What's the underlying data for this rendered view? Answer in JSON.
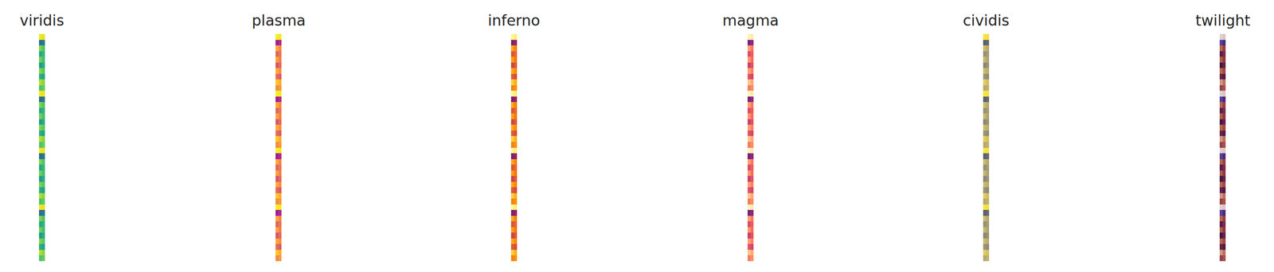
{
  "chart_data": [
    {
      "type": "heatmap",
      "title": "viridis",
      "zlim": [
        0,
        1
      ],
      "tick_labels": false,
      "cells": [
        [
          0.98,
          0.96
        ],
        [
          0.35,
          0.4
        ],
        [
          0.8,
          0.72
        ],
        [
          0.6,
          0.66
        ],
        [
          0.78,
          0.7
        ],
        [
          0.55,
          0.62
        ],
        [
          0.8,
          0.74
        ],
        [
          0.62,
          0.58
        ],
        [
          0.88,
          0.82
        ],
        [
          0.72,
          0.76
        ],
        [
          0.98,
          0.96
        ],
        [
          0.35,
          0.4
        ],
        [
          0.8,
          0.72
        ],
        [
          0.6,
          0.66
        ],
        [
          0.78,
          0.7
        ],
        [
          0.55,
          0.62
        ],
        [
          0.8,
          0.74
        ],
        [
          0.62,
          0.58
        ],
        [
          0.88,
          0.82
        ],
        [
          0.72,
          0.76
        ],
        [
          0.98,
          0.96
        ],
        [
          0.35,
          0.4
        ],
        [
          0.8,
          0.72
        ],
        [
          0.6,
          0.66
        ],
        [
          0.78,
          0.7
        ],
        [
          0.55,
          0.62
        ],
        [
          0.8,
          0.74
        ],
        [
          0.62,
          0.58
        ],
        [
          0.88,
          0.82
        ],
        [
          0.72,
          0.76
        ],
        [
          0.98,
          0.96
        ],
        [
          0.35,
          0.4
        ],
        [
          0.8,
          0.72
        ],
        [
          0.6,
          0.66
        ],
        [
          0.78,
          0.7
        ],
        [
          0.55,
          0.62
        ],
        [
          0.8,
          0.74
        ],
        [
          0.62,
          0.58
        ],
        [
          0.88,
          0.82
        ],
        [
          0.72,
          0.76
        ]
      ]
    },
    {
      "type": "heatmap",
      "title": "plasma",
      "zlim": [
        0,
        1
      ],
      "tick_labels": false,
      "cells": [
        [
          0.98,
          0.96
        ],
        [
          0.35,
          0.4
        ],
        [
          0.8,
          0.72
        ],
        [
          0.6,
          0.66
        ],
        [
          0.78,
          0.7
        ],
        [
          0.55,
          0.62
        ],
        [
          0.8,
          0.74
        ],
        [
          0.62,
          0.58
        ],
        [
          0.88,
          0.82
        ],
        [
          0.72,
          0.76
        ],
        [
          0.98,
          0.96
        ],
        [
          0.35,
          0.4
        ],
        [
          0.8,
          0.72
        ],
        [
          0.6,
          0.66
        ],
        [
          0.78,
          0.7
        ],
        [
          0.55,
          0.62
        ],
        [
          0.8,
          0.74
        ],
        [
          0.62,
          0.58
        ],
        [
          0.88,
          0.82
        ],
        [
          0.72,
          0.76
        ],
        [
          0.98,
          0.96
        ],
        [
          0.35,
          0.4
        ],
        [
          0.8,
          0.72
        ],
        [
          0.6,
          0.66
        ],
        [
          0.78,
          0.7
        ],
        [
          0.55,
          0.62
        ],
        [
          0.8,
          0.74
        ],
        [
          0.62,
          0.58
        ],
        [
          0.88,
          0.82
        ],
        [
          0.72,
          0.76
        ],
        [
          0.98,
          0.96
        ],
        [
          0.35,
          0.4
        ],
        [
          0.8,
          0.72
        ],
        [
          0.6,
          0.66
        ],
        [
          0.78,
          0.7
        ],
        [
          0.55,
          0.62
        ],
        [
          0.8,
          0.74
        ],
        [
          0.62,
          0.58
        ],
        [
          0.88,
          0.82
        ],
        [
          0.72,
          0.76
        ]
      ]
    },
    {
      "type": "heatmap",
      "title": "inferno",
      "zlim": [
        0,
        1
      ],
      "tick_labels": false,
      "cells": [
        [
          0.98,
          0.96
        ],
        [
          0.35,
          0.4
        ],
        [
          0.8,
          0.72
        ],
        [
          0.6,
          0.66
        ],
        [
          0.78,
          0.7
        ],
        [
          0.55,
          0.62
        ],
        [
          0.8,
          0.74
        ],
        [
          0.62,
          0.58
        ],
        [
          0.88,
          0.82
        ],
        [
          0.72,
          0.76
        ],
        [
          0.98,
          0.96
        ],
        [
          0.35,
          0.4
        ],
        [
          0.8,
          0.72
        ],
        [
          0.6,
          0.66
        ],
        [
          0.78,
          0.7
        ],
        [
          0.55,
          0.62
        ],
        [
          0.8,
          0.74
        ],
        [
          0.62,
          0.58
        ],
        [
          0.88,
          0.82
        ],
        [
          0.72,
          0.76
        ],
        [
          0.98,
          0.96
        ],
        [
          0.35,
          0.4
        ],
        [
          0.8,
          0.72
        ],
        [
          0.6,
          0.66
        ],
        [
          0.78,
          0.7
        ],
        [
          0.55,
          0.62
        ],
        [
          0.8,
          0.74
        ],
        [
          0.62,
          0.58
        ],
        [
          0.88,
          0.82
        ],
        [
          0.72,
          0.76
        ],
        [
          0.98,
          0.96
        ],
        [
          0.35,
          0.4
        ],
        [
          0.8,
          0.72
        ],
        [
          0.6,
          0.66
        ],
        [
          0.78,
          0.7
        ],
        [
          0.55,
          0.62
        ],
        [
          0.8,
          0.74
        ],
        [
          0.62,
          0.58
        ],
        [
          0.88,
          0.82
        ],
        [
          0.72,
          0.76
        ]
      ]
    },
    {
      "type": "heatmap",
      "title": "magma",
      "zlim": [
        0,
        1
      ],
      "tick_labels": false,
      "cells": [
        [
          0.98,
          0.96
        ],
        [
          0.35,
          0.4
        ],
        [
          0.8,
          0.72
        ],
        [
          0.6,
          0.66
        ],
        [
          0.78,
          0.7
        ],
        [
          0.55,
          0.62
        ],
        [
          0.8,
          0.74
        ],
        [
          0.62,
          0.58
        ],
        [
          0.88,
          0.82
        ],
        [
          0.72,
          0.76
        ],
        [
          0.98,
          0.96
        ],
        [
          0.35,
          0.4
        ],
        [
          0.8,
          0.72
        ],
        [
          0.6,
          0.66
        ],
        [
          0.78,
          0.7
        ],
        [
          0.55,
          0.62
        ],
        [
          0.8,
          0.74
        ],
        [
          0.62,
          0.58
        ],
        [
          0.88,
          0.82
        ],
        [
          0.72,
          0.76
        ],
        [
          0.98,
          0.96
        ],
        [
          0.35,
          0.4
        ],
        [
          0.8,
          0.72
        ],
        [
          0.6,
          0.66
        ],
        [
          0.78,
          0.7
        ],
        [
          0.55,
          0.62
        ],
        [
          0.8,
          0.74
        ],
        [
          0.62,
          0.58
        ],
        [
          0.88,
          0.82
        ],
        [
          0.72,
          0.76
        ],
        [
          0.98,
          0.96
        ],
        [
          0.35,
          0.4
        ],
        [
          0.8,
          0.72
        ],
        [
          0.6,
          0.66
        ],
        [
          0.78,
          0.7
        ],
        [
          0.55,
          0.62
        ],
        [
          0.8,
          0.74
        ],
        [
          0.62,
          0.58
        ],
        [
          0.88,
          0.82
        ],
        [
          0.72,
          0.76
        ]
      ]
    },
    {
      "type": "heatmap",
      "title": "cividis",
      "zlim": [
        0,
        1
      ],
      "tick_labels": false,
      "cells": [
        [
          0.98,
          0.96
        ],
        [
          0.35,
          0.4
        ],
        [
          0.8,
          0.72
        ],
        [
          0.6,
          0.66
        ],
        [
          0.78,
          0.7
        ],
        [
          0.55,
          0.62
        ],
        [
          0.8,
          0.74
        ],
        [
          0.62,
          0.58
        ],
        [
          0.88,
          0.82
        ],
        [
          0.72,
          0.76
        ],
        [
          0.98,
          0.96
        ],
        [
          0.35,
          0.4
        ],
        [
          0.8,
          0.72
        ],
        [
          0.6,
          0.66
        ],
        [
          0.78,
          0.7
        ],
        [
          0.55,
          0.62
        ],
        [
          0.8,
          0.74
        ],
        [
          0.62,
          0.58
        ],
        [
          0.88,
          0.82
        ],
        [
          0.72,
          0.76
        ],
        [
          0.98,
          0.96
        ],
        [
          0.35,
          0.4
        ],
        [
          0.8,
          0.72
        ],
        [
          0.6,
          0.66
        ],
        [
          0.78,
          0.7
        ],
        [
          0.55,
          0.62
        ],
        [
          0.8,
          0.74
        ],
        [
          0.62,
          0.58
        ],
        [
          0.88,
          0.82
        ],
        [
          0.72,
          0.76
        ],
        [
          0.98,
          0.96
        ],
        [
          0.35,
          0.4
        ],
        [
          0.8,
          0.72
        ],
        [
          0.6,
          0.66
        ],
        [
          0.78,
          0.7
        ],
        [
          0.55,
          0.62
        ],
        [
          0.8,
          0.74
        ],
        [
          0.62,
          0.58
        ],
        [
          0.88,
          0.82
        ],
        [
          0.72,
          0.76
        ]
      ]
    },
    {
      "type": "heatmap",
      "title": "twilight",
      "zlim": [
        0,
        1
      ],
      "tick_labels": false,
      "cells": [
        [
          0.98,
          0.96
        ],
        [
          0.35,
          0.4
        ],
        [
          0.8,
          0.72
        ],
        [
          0.6,
          0.66
        ],
        [
          0.78,
          0.7
        ],
        [
          0.55,
          0.62
        ],
        [
          0.8,
          0.74
        ],
        [
          0.62,
          0.58
        ],
        [
          0.88,
          0.82
        ],
        [
          0.72,
          0.76
        ],
        [
          0.98,
          0.96
        ],
        [
          0.35,
          0.4
        ],
        [
          0.8,
          0.72
        ],
        [
          0.6,
          0.66
        ],
        [
          0.78,
          0.7
        ],
        [
          0.55,
          0.62
        ],
        [
          0.8,
          0.74
        ],
        [
          0.62,
          0.58
        ],
        [
          0.88,
          0.82
        ],
        [
          0.72,
          0.76
        ],
        [
          0.98,
          0.96
        ],
        [
          0.35,
          0.4
        ],
        [
          0.8,
          0.72
        ],
        [
          0.6,
          0.66
        ],
        [
          0.78,
          0.7
        ],
        [
          0.55,
          0.62
        ],
        [
          0.8,
          0.74
        ],
        [
          0.62,
          0.58
        ],
        [
          0.88,
          0.82
        ],
        [
          0.72,
          0.76
        ],
        [
          0.98,
          0.96
        ],
        [
          0.35,
          0.4
        ],
        [
          0.8,
          0.72
        ],
        [
          0.6,
          0.66
        ],
        [
          0.78,
          0.7
        ],
        [
          0.55,
          0.62
        ],
        [
          0.8,
          0.74
        ],
        [
          0.62,
          0.58
        ],
        [
          0.88,
          0.82
        ],
        [
          0.72,
          0.76
        ]
      ]
    }
  ]
}
